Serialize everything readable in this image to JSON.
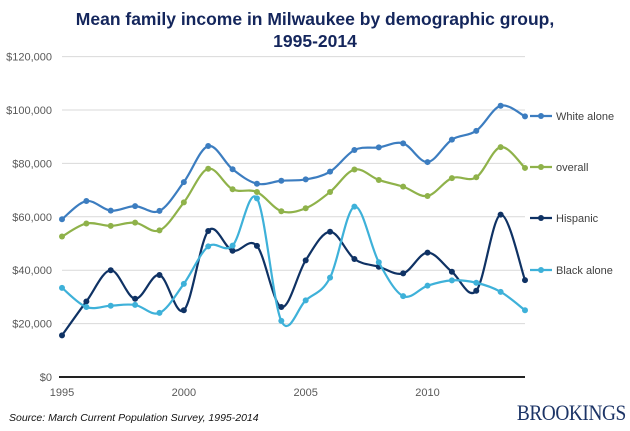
{
  "chart_data": {
    "type": "line",
    "title": "Mean family income in Milwaukee by demographic group,\n1995-2014",
    "xlabel": "",
    "ylabel": "",
    "x": [
      1995,
      1996,
      1997,
      1998,
      1999,
      2000,
      2001,
      2002,
      2003,
      2004,
      2005,
      2006,
      2007,
      2008,
      2009,
      2010,
      2011,
      2012,
      2013,
      2014
    ],
    "xlim": [
      1995,
      2014
    ],
    "x_ticks": [
      1995,
      2000,
      2005,
      2010
    ],
    "x_tick_labels": [
      "1995",
      "2000",
      "2005",
      "2010"
    ],
    "ylim": [
      0,
      120000
    ],
    "y_ticks": [
      0,
      20000,
      40000,
      60000,
      80000,
      100000,
      120000
    ],
    "y_tick_labels": [
      "$0",
      "$20,000",
      "$40,000",
      "$60,000",
      "$80,000",
      "$100,000",
      "$120,000"
    ],
    "grid": "horizontal",
    "legend_position": "right",
    "series": [
      {
        "name": "White alone",
        "color": "#3c7dc0",
        "values": [
          59100,
          65900,
          62300,
          64000,
          62200,
          73000,
          86500,
          77800,
          72400,
          73500,
          74000,
          76900,
          85000,
          86000,
          87500,
          80500,
          88900,
          92200,
          101600,
          97600
        ]
      },
      {
        "name": "overall",
        "color": "#8fb24a",
        "values": [
          52600,
          57500,
          56600,
          57800,
          54900,
          65400,
          78000,
          70300,
          69300,
          62100,
          63200,
          69300,
          77700,
          73800,
          71300,
          67800,
          74500,
          74800,
          86100,
          78300
        ]
      },
      {
        "name": "Hispanic",
        "color": "#0f3264",
        "values": [
          15600,
          28300,
          40000,
          29300,
          38200,
          25000,
          54700,
          47300,
          49100,
          26200,
          43700,
          54400,
          44200,
          41300,
          38800,
          46600,
          39400,
          32300,
          60800,
          36300
        ]
      },
      {
        "name": "Black alone",
        "color": "#3eb1d9",
        "values": [
          33400,
          26200,
          26700,
          27000,
          24000,
          34900,
          48900,
          49200,
          66900,
          21000,
          28700,
          37200,
          63800,
          43000,
          30300,
          34200,
          36200,
          35300,
          31900,
          25000
        ]
      }
    ]
  },
  "footer": {
    "source": "Source: March Current Population Survey, 1995-2014",
    "logo": "BROOKINGS"
  }
}
